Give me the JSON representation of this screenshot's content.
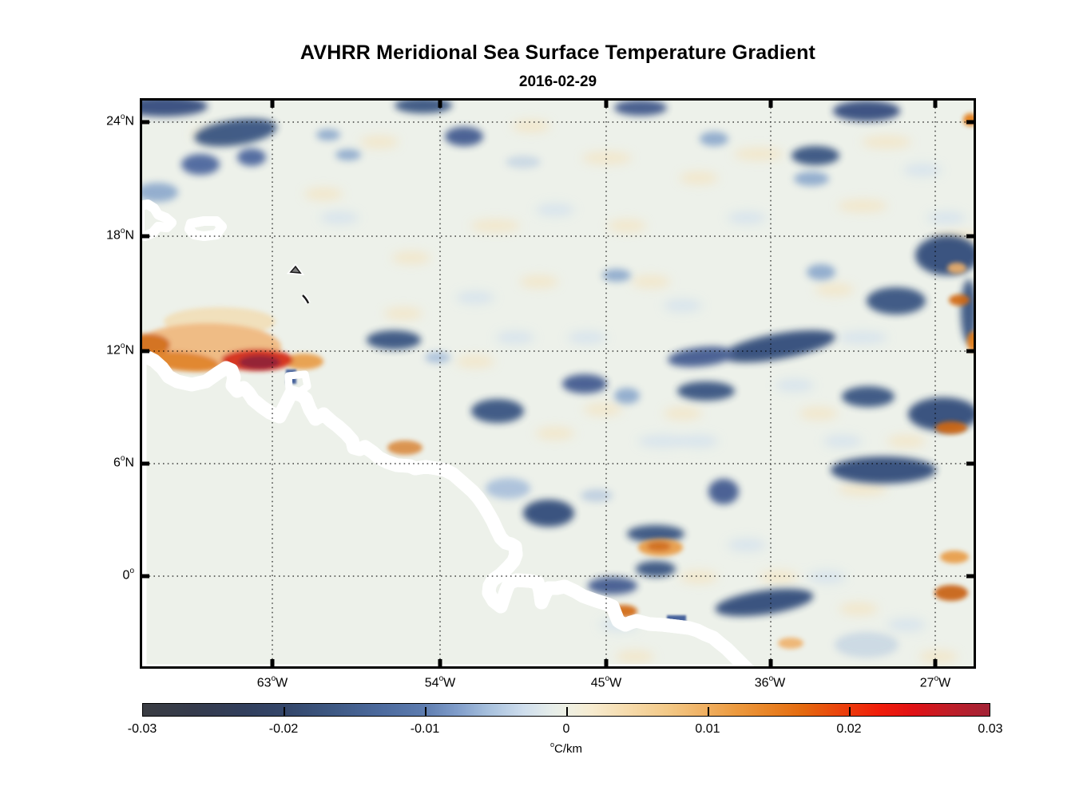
{
  "title": "AVHRR Meridional Sea Surface Temperature Gradient",
  "subtitle": "2016-02-29",
  "map": {
    "x_ticks": [
      {
        "value": "63",
        "deg": "o",
        "suffix": "W"
      },
      {
        "value": "54",
        "deg": "o",
        "suffix": "W"
      },
      {
        "value": "45",
        "deg": "o",
        "suffix": "W"
      },
      {
        "value": "36",
        "deg": "o",
        "suffix": "W"
      },
      {
        "value": "27",
        "deg": "o",
        "suffix": "W"
      }
    ],
    "y_ticks": [
      {
        "value": "24",
        "deg": "o",
        "suffix": "N"
      },
      {
        "value": "18",
        "deg": "o",
        "suffix": "N"
      },
      {
        "value": "12",
        "deg": "o",
        "suffix": "N"
      },
      {
        "value": "6",
        "deg": "o",
        "suffix": "N"
      },
      {
        "value": "0",
        "deg": "o",
        "suffix": ""
      }
    ]
  },
  "colorbar": {
    "ticks": [
      "-0.03",
      "-0.02",
      "-0.01",
      "0",
      "0.01",
      "0.02",
      "0.03"
    ],
    "unit_deg": "o",
    "unit": "C/km"
  },
  "chart_data": {
    "type": "heatmap",
    "title": "AVHRR Meridional Sea Surface Temperature Gradient",
    "date": "2016-02-29",
    "variable": "meridional sea surface temperature gradient",
    "units": "°C/km",
    "x_axis": {
      "tick_values_deg_west": [
        63,
        54,
        45,
        36,
        27
      ],
      "approx_range_deg_west": [
        70.5,
        24.5
      ]
    },
    "y_axis": {
      "tick_values_deg_north": [
        24,
        18,
        12,
        6,
        0
      ],
      "approx_range_deg_north": [
        25.3,
        -4.9
      ]
    },
    "colorbar": {
      "min": -0.03,
      "max": 0.03,
      "tick_step": 0.01,
      "unit": "°C/km",
      "style": "diverging: dark charcoal-blue (negative) through white (zero) to red/dark red (positive)"
    },
    "grid": "black dotted graticule every 9 deg longitude / 6 deg latitude",
    "land": "gray landmask with white coastal buffer: South America (Venezuela through NE Brazil incl. Amazon mouth), Hispaniola edge, Puerto Rico, Lesser Antilles, Trinidad",
    "background_field": "mostly weak gradients between -0.005 and +0.005 °C/km with mesoscale mottling",
    "notable_features": [
      {
        "lon_deg_west": 64,
        "lat_deg_north": 11.7,
        "value_c_per_km": 0.03,
        "description": "intense positive (dark red) patch off Venezuelan coast"
      },
      {
        "lon_deg_west": 67,
        "lat_deg_north": 12.2,
        "value_c_per_km": 0.015,
        "description": "broad orange band along SE Caribbean"
      },
      {
        "lon_deg_west": 33.5,
        "lat_deg_north": 12.3,
        "value_c_per_km": -0.022,
        "description": "dark negative diagonal streak"
      },
      {
        "lon_deg_west": 27.5,
        "lat_deg_north": 17.5,
        "value_c_per_km": -0.02,
        "description": "dark negative patches near right edge"
      },
      {
        "lon_deg_west": 30,
        "lat_deg_north": 5.3,
        "value_c_per_km": -0.022,
        "description": "large negative blob"
      },
      {
        "lon_deg_west": 40,
        "lat_deg_north": -1.5,
        "value_c_per_km": -0.02,
        "description": "negative streak below equator"
      },
      {
        "lon_deg_west": 44.5,
        "lat_deg_north": 1.2,
        "value_c_per_km": 0.018,
        "description": "orange patch at Amazon-mouth coast"
      },
      {
        "lon_deg_west": 27,
        "lat_deg_north": -0.5,
        "value_c_per_km": 0.018,
        "description": "dark orange ovals at right edge"
      },
      {
        "lon_deg_west": 66,
        "lat_deg_north": 23.5,
        "value_c_per_km": -0.02,
        "description": "negative patches in top-left (Atlantic N of Caribbean)"
      }
    ]
  }
}
